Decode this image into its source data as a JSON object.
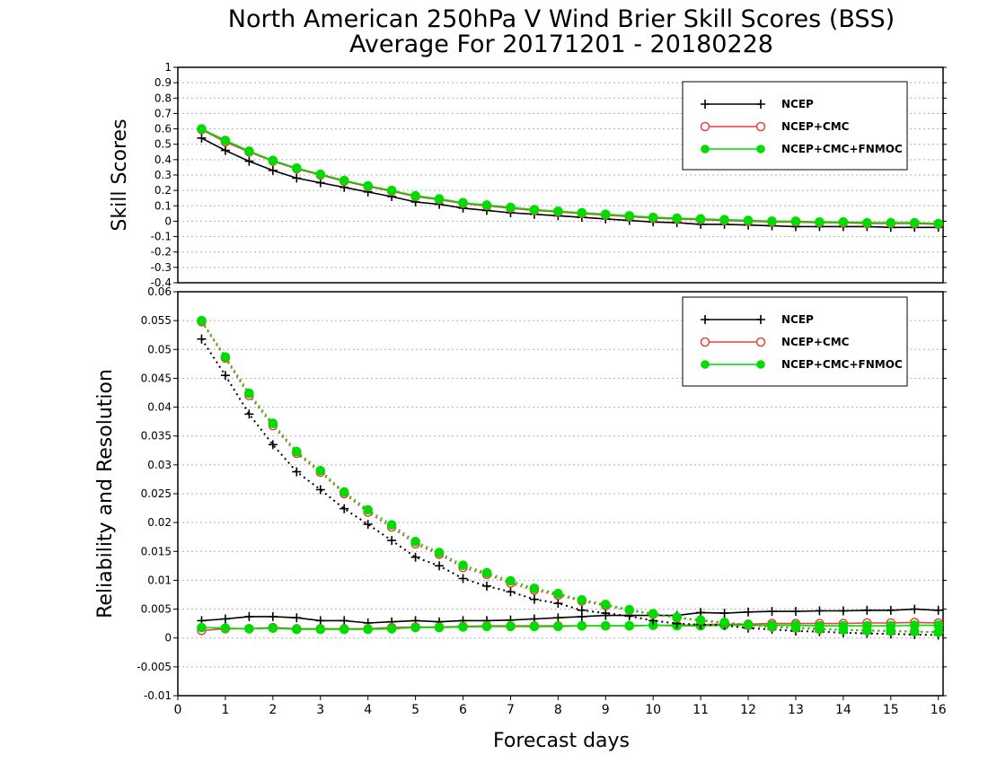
{
  "title_line1": "North American 250hPa V Wind Brier Skill Scores (BSS)",
  "title_line2": "Average For 20171201 - 20180228",
  "colors": {
    "NCEP": "#000000",
    "NCEP+CMC": "#e8413c",
    "NCEP+CMC+FNMOC": "#00dc00"
  },
  "chart_data": [
    {
      "type": "line",
      "ylabel": "Skill Scores",
      "xlim": [
        0,
        16.1
      ],
      "ylim": [
        -0.4,
        1
      ],
      "yticks": [
        1,
        0.9,
        0.8,
        0.7,
        0.6,
        0.5,
        0.4,
        0.3,
        0.2,
        0.1,
        0,
        -0.1,
        -0.2,
        -0.3,
        -0.4
      ],
      "grid": true,
      "legend": "top-right",
      "x": [
        0.5,
        1,
        1.5,
        2,
        2.5,
        3,
        3.5,
        4,
        4.5,
        5,
        5.5,
        6,
        6.5,
        7,
        7.5,
        8,
        8.5,
        9,
        9.5,
        10,
        10.5,
        11,
        11.5,
        12,
        12.5,
        13,
        13.5,
        14,
        14.5,
        15,
        15.5,
        16
      ],
      "series": [
        {
          "name": "NCEP",
          "marker": "plus",
          "linestyle": "solid",
          "values": [
            0.54,
            0.46,
            0.39,
            0.33,
            0.28,
            0.25,
            0.22,
            0.19,
            0.16,
            0.125,
            0.11,
            0.085,
            0.07,
            0.055,
            0.045,
            0.035,
            0.025,
            0.015,
            0.005,
            -0.005,
            -0.01,
            -0.02,
            -0.02,
            -0.025,
            -0.03,
            -0.035,
            -0.035,
            -0.035,
            -0.035,
            -0.04,
            -0.04,
            -0.04
          ]
        },
        {
          "name": "NCEP+CMC",
          "marker": "open-circle",
          "linestyle": "solid",
          "values": [
            0.595,
            0.515,
            0.45,
            0.39,
            0.34,
            0.3,
            0.26,
            0.225,
            0.195,
            0.16,
            0.14,
            0.115,
            0.1,
            0.085,
            0.07,
            0.06,
            0.05,
            0.04,
            0.03,
            0.02,
            0.015,
            0.01,
            0.005,
            0,
            -0.005,
            -0.005,
            -0.01,
            -0.01,
            -0.015,
            -0.015,
            -0.015,
            -0.02
          ]
        },
        {
          "name": "NCEP+CMC+FNMOC",
          "marker": "filled-circle",
          "linestyle": "solid",
          "values": [
            0.6,
            0.525,
            0.455,
            0.395,
            0.345,
            0.305,
            0.265,
            0.23,
            0.2,
            0.165,
            0.145,
            0.12,
            0.105,
            0.09,
            0.075,
            0.065,
            0.055,
            0.045,
            0.035,
            0.025,
            0.02,
            0.015,
            0.01,
            0.005,
            0,
            0,
            -0.005,
            -0.005,
            -0.01,
            -0.01,
            -0.01,
            -0.015
          ]
        }
      ]
    },
    {
      "type": "line",
      "ylabel": "Reliability and Resolution",
      "xlabel": "Forecast days",
      "xlim": [
        0,
        16.1
      ],
      "ylim": [
        -0.01,
        0.06
      ],
      "yticks": [
        0.06,
        0.055,
        0.05,
        0.045,
        0.04,
        0.035,
        0.03,
        0.025,
        0.02,
        0.015,
        0.01,
        0.005,
        0,
        -0.005,
        -0.01
      ],
      "xticks": [
        0,
        1,
        2,
        3,
        4,
        5,
        6,
        7,
        8,
        9,
        10,
        11,
        12,
        13,
        14,
        15,
        16
      ],
      "grid": true,
      "legend": "top-right",
      "x": [
        0.5,
        1,
        1.5,
        2,
        2.5,
        3,
        3.5,
        4,
        4.5,
        5,
        5.5,
        6,
        6.5,
        7,
        7.5,
        8,
        8.5,
        9,
        9.5,
        10,
        10.5,
        11,
        11.5,
        12,
        12.5,
        13,
        13.5,
        14,
        14.5,
        15,
        15.5,
        16
      ],
      "series": [
        {
          "name": "NCEP",
          "group": "reliability",
          "marker": "plus",
          "linestyle": "solid",
          "values": [
            0.003,
            0.0033,
            0.0037,
            0.0037,
            0.0035,
            0.003,
            0.003,
            0.0026,
            0.0028,
            0.003,
            0.0028,
            0.003,
            0.003,
            0.0031,
            0.0033,
            0.0035,
            0.0037,
            0.0039,
            0.0039,
            0.0039,
            0.0039,
            0.0044,
            0.0043,
            0.0045,
            0.0046,
            0.0046,
            0.0047,
            0.0047,
            0.0048,
            0.0048,
            0.005,
            0.0048
          ]
        },
        {
          "name": "NCEP+CMC",
          "group": "reliability",
          "marker": "open-circle",
          "linestyle": "solid",
          "values": [
            0.0013,
            0.0016,
            0.0016,
            0.0018,
            0.0016,
            0.0016,
            0.0016,
            0.0016,
            0.0018,
            0.0019,
            0.0019,
            0.002,
            0.0021,
            0.0021,
            0.0021,
            0.0021,
            0.0021,
            0.0021,
            0.0021,
            0.0022,
            0.0022,
            0.0023,
            0.0024,
            0.0024,
            0.0025,
            0.0025,
            0.0025,
            0.0025,
            0.0026,
            0.0026,
            0.0027,
            0.0026
          ]
        },
        {
          "name": "NCEP+CMC+FNMOC",
          "group": "reliability",
          "marker": "filled-circle",
          "linestyle": "solid",
          "values": [
            0.0018,
            0.0017,
            0.0016,
            0.0017,
            0.0015,
            0.0015,
            0.0015,
            0.0015,
            0.0016,
            0.0018,
            0.0018,
            0.0019,
            0.002,
            0.002,
            0.002,
            0.002,
            0.0021,
            0.0021,
            0.0021,
            0.0022,
            0.0021,
            0.0021,
            0.0022,
            0.0022,
            0.0022,
            0.0022,
            0.0021,
            0.0021,
            0.0021,
            0.0021,
            0.0022,
            0.0022
          ]
        },
        {
          "name": "NCEP",
          "group": "resolution",
          "marker": "plus",
          "linestyle": "dotted",
          "values": [
            0.0518,
            0.0455,
            0.0388,
            0.0335,
            0.0288,
            0.0257,
            0.0224,
            0.0197,
            0.0169,
            0.014,
            0.0125,
            0.0103,
            0.009,
            0.008,
            0.0067,
            0.006,
            0.0048,
            0.0043,
            0.0038,
            0.003,
            0.0025,
            0.0023,
            0.0022,
            0.0017,
            0.0015,
            0.0012,
            0.0011,
            0.0009,
            0.0008,
            0.0007,
            0.0006,
            0.0005
          ]
        },
        {
          "name": "NCEP+CMC",
          "group": "resolution",
          "marker": "open-circle",
          "linestyle": "dotted",
          "values": [
            0.0548,
            0.0485,
            0.042,
            0.0368,
            0.032,
            0.0287,
            0.025,
            0.0218,
            0.0192,
            0.0163,
            0.0145,
            0.0122,
            0.011,
            0.0095,
            0.0083,
            0.0074,
            0.0064,
            0.0056,
            0.0048,
            0.0041,
            0.0035,
            0.003,
            0.0026,
            0.0022,
            0.0019,
            0.0017,
            0.0015,
            0.0014,
            0.0013,
            0.0012,
            0.0011,
            0.001
          ]
        },
        {
          "name": "NCEP+CMC+FNMOC",
          "group": "resolution",
          "marker": "filled-circle",
          "linestyle": "dotted",
          "values": [
            0.055,
            0.0487,
            0.0424,
            0.0372,
            0.0323,
            0.029,
            0.0253,
            0.0222,
            0.0196,
            0.0167,
            0.0148,
            0.0126,
            0.0113,
            0.0099,
            0.0086,
            0.0077,
            0.0066,
            0.0058,
            0.0049,
            0.0042,
            0.0036,
            0.0031,
            0.0027,
            0.0023,
            0.002,
            0.0018,
            0.0016,
            0.0014,
            0.0013,
            0.0012,
            0.0011,
            0.001
          ]
        }
      ]
    }
  ]
}
